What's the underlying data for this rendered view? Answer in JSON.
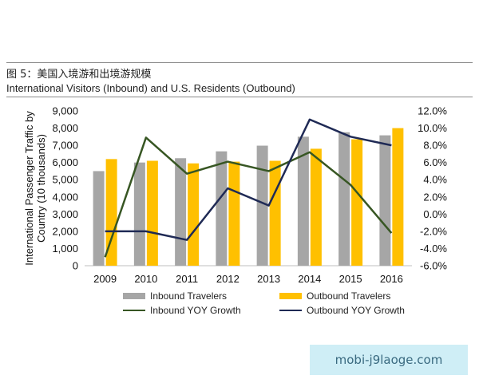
{
  "figure_title": "图 5：美国入境游和出境游规模",
  "watermark": "mobi-j9laoge.com",
  "chart_data": {
    "type": "bar",
    "title": "International Visitors (Inbound) and U.S. Residents (Outbound)",
    "ylabel": "International Passenger Traffic by Country (10 thousands)",
    "xlabel": "",
    "categories": [
      "2009",
      "2010",
      "2011",
      "2012",
      "2013",
      "2014",
      "2015",
      "2016"
    ],
    "ylim": [
      0,
      9000
    ],
    "y2lim": [
      -6,
      12
    ],
    "y_ticks": [
      "0",
      "1,000",
      "2,000",
      "3,000",
      "4,000",
      "5,000",
      "6,000",
      "7,000",
      "8,000",
      "9,000"
    ],
    "y2_ticks": [
      "-6.0%",
      "-4.0%",
      "-2.0%",
      "0.0%",
      "2.0%",
      "4.0%",
      "6.0%",
      "8.0%",
      "10.0%",
      "12.0%"
    ],
    "series": [
      {
        "name": "Inbound Travelers",
        "kind": "bar",
        "axis": "left",
        "color": "#a6a6a6",
        "values": [
          5500,
          6000,
          6250,
          6650,
          6980,
          7500,
          7760,
          7580
        ]
      },
      {
        "name": "Outbound Travelers",
        "kind": "bar",
        "axis": "left",
        "color": "#ffc000",
        "values": [
          6200,
          6100,
          5950,
          6050,
          6100,
          6800,
          7350,
          8000
        ]
      },
      {
        "name": "Inbound YOY Growth",
        "kind": "line",
        "axis": "right",
        "color": "#375623",
        "values": [
          -5.0,
          8.9,
          4.7,
          6.1,
          5.0,
          7.2,
          3.4,
          -2.2
        ]
      },
      {
        "name": "Outbound YOY Growth",
        "kind": "line",
        "axis": "right",
        "color": "#1f2a55",
        "values": [
          -2.0,
          -2.0,
          -3.0,
          3.0,
          1.0,
          11.0,
          9.0,
          8.0
        ]
      }
    ],
    "legend_position": "bottom",
    "grid": false
  }
}
